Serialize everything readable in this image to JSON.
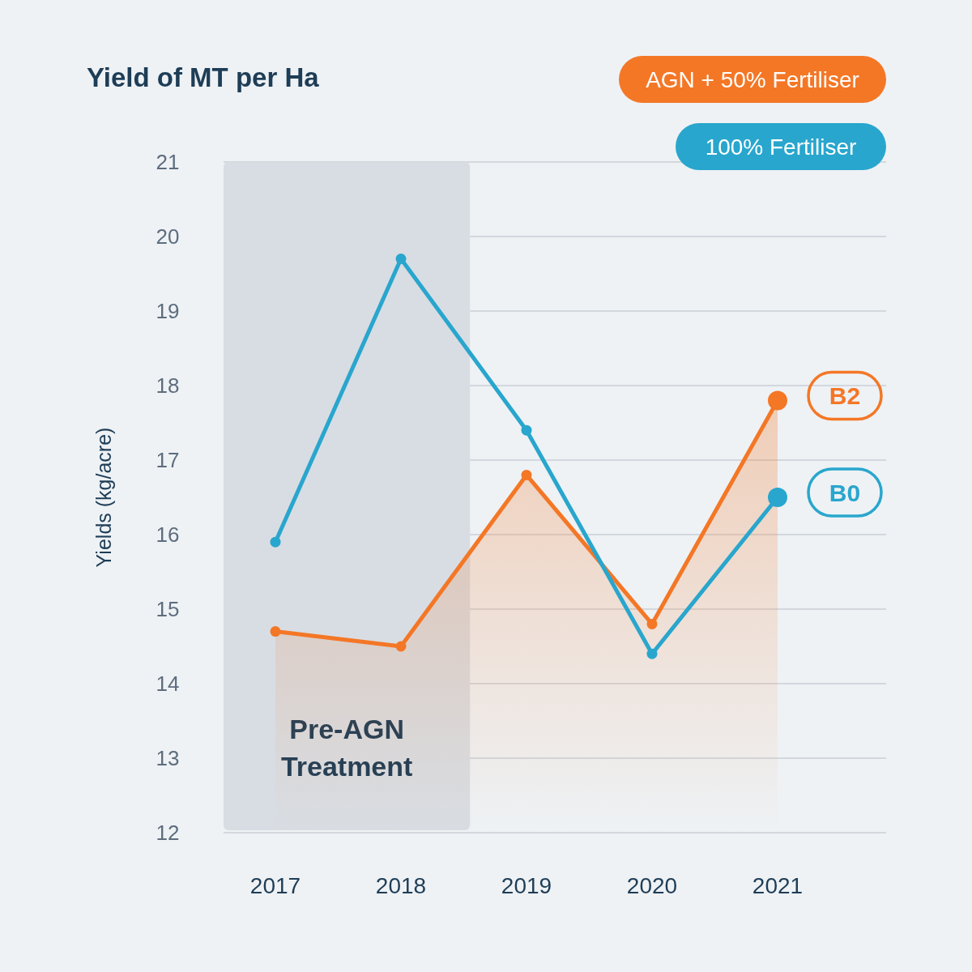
{
  "chart_data": {
    "type": "line",
    "title": "Yield of MT per Ha",
    "ylabel": "Yields (kg/acre)",
    "categories": [
      "2017",
      "2018",
      "2019",
      "2020",
      "2021"
    ],
    "series": [
      {
        "name": "AGN + 50% Fertiliser",
        "type": "area",
        "color": "#f47726",
        "values": [
          14.7,
          14.5,
          16.8,
          14.8,
          17.8
        ]
      },
      {
        "name": "100% Fertiliser",
        "color": "#29a6cd",
        "values": [
          15.9,
          19.7,
          17.4,
          14.4,
          16.5
        ]
      }
    ],
    "ylim": [
      12,
      21
    ],
    "yticks": [
      12,
      13,
      14,
      15,
      16,
      17,
      18,
      19,
      20,
      21
    ],
    "grid": "y",
    "legend": "top right",
    "marker": "circle",
    "bands": [
      {
        "axis": "x",
        "from": "2017",
        "to": "2018",
        "label": "Pre-AGN Treatment",
        "color": "#d8dde3"
      }
    ],
    "annotations": [
      {
        "text": "B2",
        "x": "2021",
        "y": 17.8
      },
      {
        "text": "B0",
        "x": "2021",
        "y": 16.5
      }
    ]
  }
}
